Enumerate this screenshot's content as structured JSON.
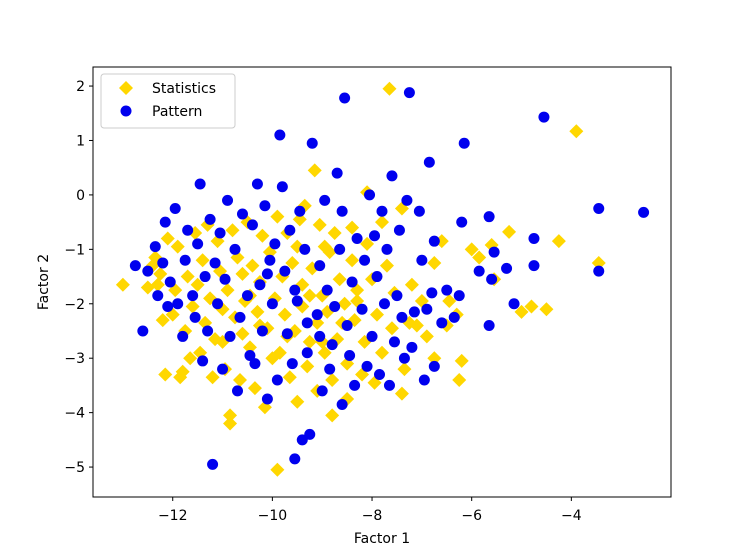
{
  "chart_data": {
    "type": "scatter",
    "title": "",
    "xlabel": "Factor 1",
    "ylabel": "Factor 2",
    "xlim": [
      -13.6,
      -2.0
    ],
    "ylim": [
      -5.55,
      2.35
    ],
    "xticks": [
      -12,
      -10,
      -8,
      -6,
      -4
    ],
    "yticks": [
      2,
      1,
      0,
      -1,
      -2,
      -3,
      -4,
      -5
    ],
    "xtick_labels": [
      "−12",
      "−10",
      "−8",
      "−6",
      "−4"
    ],
    "ytick_labels": [
      "2",
      "1",
      "0",
      "−1",
      "−2",
      "−3",
      "−4",
      "−5"
    ],
    "grid": false,
    "legend_position": "upper-left",
    "series": [
      {
        "name": "Statistics",
        "marker": "diamond",
        "color": "#FFD700",
        "points": [
          [
            -13.0,
            -1.65
          ],
          [
            -7.65,
            1.95
          ],
          [
            -3.9,
            1.17
          ],
          [
            -3.45,
            -1.25
          ],
          [
            -4.25,
            -0.85
          ],
          [
            -4.5,
            -2.1
          ],
          [
            -4.8,
            -2.05
          ],
          [
            -5.0,
            -2.15
          ],
          [
            -5.25,
            -0.68
          ],
          [
            -5.55,
            -1.55
          ],
          [
            -5.6,
            -0.92
          ],
          [
            -5.85,
            -1.15
          ],
          [
            -6.0,
            -1.0
          ],
          [
            -6.2,
            -3.05
          ],
          [
            -6.25,
            -3.4
          ],
          [
            -6.3,
            -2.2
          ],
          [
            -6.45,
            -1.95
          ],
          [
            -6.5,
            -2.4
          ],
          [
            -6.6,
            -0.85
          ],
          [
            -6.75,
            -1.25
          ],
          [
            -6.75,
            -3.0
          ],
          [
            -6.9,
            -2.6
          ],
          [
            -7.0,
            -1.95
          ],
          [
            -7.1,
            -2.4
          ],
          [
            -7.2,
            -1.65
          ],
          [
            -7.25,
            -2.35
          ],
          [
            -7.35,
            -3.2
          ],
          [
            -7.4,
            -3.65
          ],
          [
            -7.4,
            -0.25
          ],
          [
            -7.55,
            -1.8
          ],
          [
            -7.6,
            -2.45
          ],
          [
            -7.7,
            -1.3
          ],
          [
            -7.8,
            -0.5
          ],
          [
            -7.8,
            -2.9
          ],
          [
            -7.9,
            -2.2
          ],
          [
            -7.95,
            -3.45
          ],
          [
            -8.0,
            -1.55
          ],
          [
            -8.1,
            -0.9
          ],
          [
            -8.1,
            0.05
          ],
          [
            -8.15,
            -2.7
          ],
          [
            -8.2,
            -3.3
          ],
          [
            -8.3,
            -1.95
          ],
          [
            -8.35,
            -2.3
          ],
          [
            -8.4,
            -0.6
          ],
          [
            -8.4,
            -1.2
          ],
          [
            -8.5,
            -3.1
          ],
          [
            -8.5,
            -3.75
          ],
          [
            -8.55,
            -2.0
          ],
          [
            -8.65,
            -1.55
          ],
          [
            -8.7,
            -2.65
          ],
          [
            -8.75,
            -0.7
          ],
          [
            -8.8,
            -3.4
          ],
          [
            -8.8,
            -4.05
          ],
          [
            -8.85,
            -1.05
          ],
          [
            -8.9,
            -2.15
          ],
          [
            -8.95,
            -2.9
          ],
          [
            -9.0,
            -1.85
          ],
          [
            -9.05,
            -0.55
          ],
          [
            -9.1,
            -3.6
          ],
          [
            -9.1,
            -2.35
          ],
          [
            -9.15,
            0.45
          ],
          [
            -9.2,
            -1.35
          ],
          [
            -9.25,
            -2.7
          ],
          [
            -9.3,
            -3.15
          ],
          [
            -9.35,
            -0.2
          ],
          [
            -9.4,
            -1.65
          ],
          [
            -9.4,
            -2.05
          ],
          [
            -9.5,
            -3.8
          ],
          [
            -9.5,
            -0.95
          ],
          [
            -9.55,
            -2.5
          ],
          [
            -9.6,
            -1.25
          ],
          [
            -9.65,
            -3.35
          ],
          [
            -9.7,
            -0.7
          ],
          [
            -9.75,
            -2.2
          ],
          [
            -9.8,
            -1.5
          ],
          [
            -9.85,
            -2.9
          ],
          [
            -9.9,
            -0.4
          ],
          [
            -9.9,
            -5.05
          ],
          [
            -9.95,
            -1.9
          ],
          [
            -10.0,
            -3.0
          ],
          [
            -10.05,
            -1.05
          ],
          [
            -10.1,
            -2.45
          ],
          [
            -10.15,
            -3.9
          ],
          [
            -10.2,
            -0.75
          ],
          [
            -10.25,
            -1.6
          ],
          [
            -10.3,
            -2.15
          ],
          [
            -10.35,
            -3.55
          ],
          [
            -10.4,
            -1.3
          ],
          [
            -10.45,
            -2.8
          ],
          [
            -10.5,
            -0.5
          ],
          [
            -10.55,
            -1.95
          ],
          [
            -10.6,
            -2.55
          ],
          [
            -10.65,
            -3.4
          ],
          [
            -10.7,
            -1.15
          ],
          [
            -10.75,
            -2.25
          ],
          [
            -10.8,
            -0.65
          ],
          [
            -10.85,
            -4.05
          ],
          [
            -10.85,
            -4.2
          ],
          [
            -10.9,
            -1.75
          ],
          [
            -10.95,
            -3.2
          ],
          [
            -11.0,
            -2.1
          ],
          [
            -11.05,
            -1.4
          ],
          [
            -11.1,
            -0.85
          ],
          [
            -11.15,
            -2.65
          ],
          [
            -11.2,
            -3.35
          ],
          [
            -11.25,
            -1.9
          ],
          [
            -11.3,
            -0.55
          ],
          [
            -11.35,
            -2.35
          ],
          [
            -11.4,
            -1.2
          ],
          [
            -11.45,
            -2.9
          ],
          [
            -11.5,
            -1.65
          ],
          [
            -11.55,
            -0.7
          ],
          [
            -11.6,
            -2.05
          ],
          [
            -11.65,
            -3.0
          ],
          [
            -11.7,
            -1.5
          ],
          [
            -11.75,
            -2.5
          ],
          [
            -11.8,
            -3.25
          ],
          [
            -11.85,
            -3.35
          ],
          [
            -11.9,
            -0.95
          ],
          [
            -11.95,
            -1.75
          ],
          [
            -12.0,
            -2.2
          ],
          [
            -12.1,
            -0.8
          ],
          [
            -12.15,
            -3.3
          ],
          [
            -12.2,
            -2.3
          ],
          [
            -12.25,
            -1.45
          ],
          [
            -12.3,
            -1.65
          ],
          [
            -12.35,
            -1.15
          ],
          [
            -12.4,
            -1.3
          ],
          [
            -12.5,
            -1.7
          ],
          [
            -9.0,
            -2.7
          ],
          [
            -8.6,
            -2.35
          ],
          [
            -8.3,
            -1.75
          ],
          [
            -9.7,
            -2.6
          ],
          [
            -10.6,
            -1.45
          ],
          [
            -9.45,
            -0.45
          ],
          [
            -8.95,
            -0.95
          ],
          [
            -9.25,
            -1.85
          ],
          [
            -10.25,
            -2.4
          ],
          [
            -10.45,
            -1.85
          ],
          [
            -11.0,
            -2.7
          ]
        ]
      },
      {
        "name": "Pattern",
        "marker": "circle",
        "color": "#0000EE",
        "points": [
          [
            -2.55,
            -0.32
          ],
          [
            -3.45,
            -0.25
          ],
          [
            -3.45,
            -1.4
          ],
          [
            -4.55,
            1.43
          ],
          [
            -4.75,
            -0.8
          ],
          [
            -4.75,
            -1.3
          ],
          [
            -5.15,
            -2.0
          ],
          [
            -5.3,
            -1.35
          ],
          [
            -5.55,
            -1.05
          ],
          [
            -5.6,
            -1.55
          ],
          [
            -5.65,
            -0.4
          ],
          [
            -5.65,
            -2.4
          ],
          [
            -5.85,
            -1.4
          ],
          [
            -6.15,
            0.95
          ],
          [
            -6.2,
            -0.5
          ],
          [
            -6.25,
            -1.85
          ],
          [
            -6.35,
            -2.25
          ],
          [
            -6.5,
            -1.75
          ],
          [
            -6.6,
            -2.35
          ],
          [
            -6.75,
            -3.15
          ],
          [
            -6.75,
            -0.85
          ],
          [
            -6.8,
            -1.8
          ],
          [
            -6.85,
            0.6
          ],
          [
            -6.9,
            -2.1
          ],
          [
            -6.95,
            -3.4
          ],
          [
            -7.0,
            -1.2
          ],
          [
            -7.05,
            -0.3
          ],
          [
            -7.15,
            -2.15
          ],
          [
            -7.2,
            -2.8
          ],
          [
            -7.25,
            1.88
          ],
          [
            -7.3,
            -0.1
          ],
          [
            -7.35,
            -3.0
          ],
          [
            -7.4,
            -2.25
          ],
          [
            -7.45,
            -0.65
          ],
          [
            -7.5,
            -1.85
          ],
          [
            -7.55,
            -2.7
          ],
          [
            -7.6,
            0.35
          ],
          [
            -7.65,
            -3.5
          ],
          [
            -7.7,
            -1.0
          ],
          [
            -7.75,
            -2.0
          ],
          [
            -7.8,
            -0.3
          ],
          [
            -7.85,
            -3.3
          ],
          [
            -7.9,
            -1.5
          ],
          [
            -7.95,
            -0.75
          ],
          [
            -8.0,
            -2.6
          ],
          [
            -8.05,
            0.0
          ],
          [
            -8.1,
            -3.15
          ],
          [
            -8.15,
            -1.2
          ],
          [
            -8.2,
            -2.1
          ],
          [
            -8.3,
            -0.8
          ],
          [
            -8.35,
            -3.5
          ],
          [
            -8.4,
            -1.6
          ],
          [
            -8.5,
            -2.4
          ],
          [
            -8.55,
            1.78
          ],
          [
            -8.6,
            -3.85
          ],
          [
            -8.6,
            -0.3
          ],
          [
            -8.65,
            -1.0
          ],
          [
            -8.7,
            0.4
          ],
          [
            -8.8,
            -2.75
          ],
          [
            -8.85,
            -3.2
          ],
          [
            -8.9,
            -1.75
          ],
          [
            -8.95,
            -0.1
          ],
          [
            -9.0,
            -3.6
          ],
          [
            -9.05,
            -1.3
          ],
          [
            -9.1,
            -2.2
          ],
          [
            -9.2,
            0.95
          ],
          [
            -9.25,
            -4.4
          ],
          [
            -9.3,
            -2.9
          ],
          [
            -9.35,
            -1.0
          ],
          [
            -9.4,
            -4.5
          ],
          [
            -9.45,
            -0.3
          ],
          [
            -9.5,
            -1.95
          ],
          [
            -9.55,
            -4.85
          ],
          [
            -9.6,
            -3.1
          ],
          [
            -9.65,
            -0.65
          ],
          [
            -9.7,
            -2.55
          ],
          [
            -9.75,
            -1.4
          ],
          [
            -9.8,
            0.15
          ],
          [
            -9.85,
            1.1
          ],
          [
            -9.9,
            -3.4
          ],
          [
            -9.95,
            -0.9
          ],
          [
            -10.0,
            -2.0
          ],
          [
            -10.05,
            -1.2
          ],
          [
            -10.1,
            -3.75
          ],
          [
            -10.15,
            -0.2
          ],
          [
            -10.2,
            -2.5
          ],
          [
            -10.25,
            -1.65
          ],
          [
            -10.3,
            0.2
          ],
          [
            -10.35,
            -3.1
          ],
          [
            -10.4,
            -0.55
          ],
          [
            -10.45,
            -2.95
          ],
          [
            -10.5,
            -1.85
          ],
          [
            -10.6,
            -0.35
          ],
          [
            -10.65,
            -2.25
          ],
          [
            -10.7,
            -3.6
          ],
          [
            -10.75,
            -1.0
          ],
          [
            -10.85,
            -2.6
          ],
          [
            -10.9,
            -0.1
          ],
          [
            -10.95,
            -1.55
          ],
          [
            -11.0,
            -3.2
          ],
          [
            -11.05,
            -0.7
          ],
          [
            -11.1,
            -2.0
          ],
          [
            -11.15,
            -1.25
          ],
          [
            -11.2,
            -4.95
          ],
          [
            -11.25,
            -0.45
          ],
          [
            -11.3,
            -2.5
          ],
          [
            -11.35,
            -1.5
          ],
          [
            -11.4,
            -3.05
          ],
          [
            -11.45,
            0.2
          ],
          [
            -11.5,
            -0.9
          ],
          [
            -11.55,
            -2.25
          ],
          [
            -11.6,
            -1.85
          ],
          [
            -11.7,
            -0.65
          ],
          [
            -11.75,
            -1.2
          ],
          [
            -11.8,
            -2.6
          ],
          [
            -11.9,
            -2.0
          ],
          [
            -11.95,
            -0.25
          ],
          [
            -12.05,
            -1.6
          ],
          [
            -12.1,
            -2.05
          ],
          [
            -12.15,
            -0.5
          ],
          [
            -12.2,
            -1.25
          ],
          [
            -12.3,
            -1.85
          ],
          [
            -12.35,
            -0.95
          ],
          [
            -12.5,
            -1.4
          ],
          [
            -12.6,
            -2.5
          ],
          [
            -12.75,
            -1.3
          ],
          [
            -9.3,
            -2.35
          ],
          [
            -8.75,
            -2.05
          ],
          [
            -9.05,
            -2.6
          ],
          [
            -10.1,
            -1.45
          ],
          [
            -9.55,
            -1.75
          ],
          [
            -8.45,
            -2.95
          ]
        ]
      }
    ]
  }
}
